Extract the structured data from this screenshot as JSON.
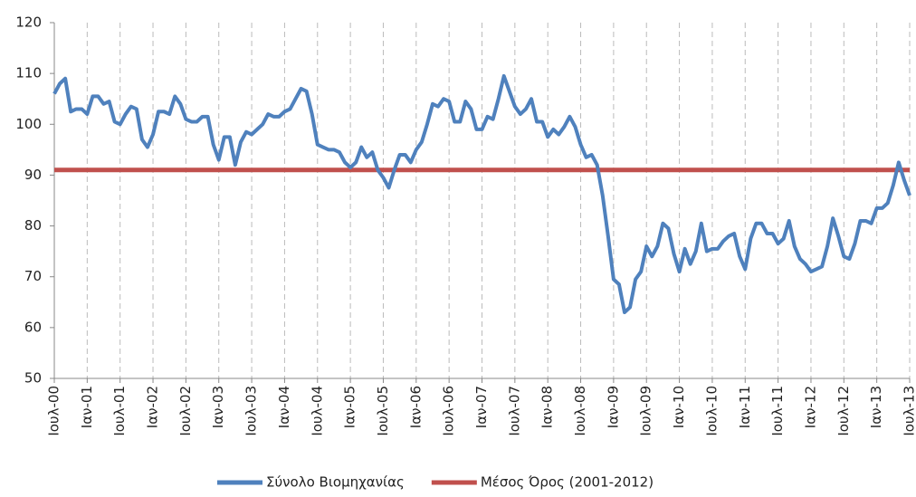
{
  "chart_data": {
    "type": "line",
    "categories": [
      "Ιουλ-00",
      null,
      null,
      null,
      null,
      null,
      "Ιαν-01",
      null,
      null,
      null,
      null,
      null,
      "Ιουλ-01",
      null,
      null,
      null,
      null,
      null,
      "Ιαν-02",
      null,
      null,
      null,
      null,
      null,
      "Ιουλ-02",
      null,
      null,
      null,
      null,
      null,
      "Ιαν-03",
      null,
      null,
      null,
      null,
      null,
      "Ιουλ-03",
      null,
      null,
      null,
      null,
      null,
      "Ιαν-04",
      null,
      null,
      null,
      null,
      null,
      "Ιουλ-04",
      null,
      null,
      null,
      null,
      null,
      "Ιαν-05",
      null,
      null,
      null,
      null,
      null,
      "Ιουλ-05",
      null,
      null,
      null,
      null,
      null,
      "Ιαν-06",
      null,
      null,
      null,
      null,
      null,
      "Ιουλ-06",
      null,
      null,
      null,
      null,
      null,
      "Ιαν-07",
      null,
      null,
      null,
      null,
      null,
      "Ιουλ-07",
      null,
      null,
      null,
      null,
      null,
      "Ιαν-08",
      null,
      null,
      null,
      null,
      null,
      "Ιουλ-08",
      null,
      null,
      null,
      null,
      null,
      "Ιαν-09",
      null,
      null,
      null,
      null,
      null,
      "Ιουλ-09",
      null,
      null,
      null,
      null,
      null,
      "Ιαν-10",
      null,
      null,
      null,
      null,
      null,
      "Ιουλ-10",
      null,
      null,
      null,
      null,
      null,
      "Ιαν-11",
      null,
      null,
      null,
      null,
      null,
      "Ιουλ-11",
      null,
      null,
      null,
      null,
      null,
      "Ιαν-12",
      null,
      null,
      null,
      null,
      null,
      "Ιουλ-12",
      null,
      null,
      null,
      null,
      null,
      "Ιαν-13",
      null,
      null,
      null,
      null,
      null,
      "Ιουλ-13"
    ],
    "series": [
      {
        "name": "Σύνολο Βιομηχανίας",
        "color": "#4f81bd",
        "values": [
          106,
          108,
          109,
          102.5,
          103,
          103,
          102,
          105.5,
          105.5,
          104,
          104.5,
          100.5,
          100,
          102,
          103.5,
          103,
          97,
          95.5,
          98,
          102.5,
          102.5,
          102,
          105.5,
          104,
          101,
          100.5,
          100.5,
          101.5,
          101.5,
          96,
          93,
          97.5,
          97.5,
          92,
          96.5,
          98.5,
          98,
          99,
          100,
          102,
          101.5,
          101.5,
          102.5,
          103,
          105,
          107,
          106.5,
          102,
          96,
          95.5,
          95,
          95,
          94.5,
          92.5,
          91.5,
          92.5,
          95.5,
          93.5,
          94.5,
          91,
          89.5,
          87.5,
          91,
          94,
          94,
          92.5,
          95,
          96.5,
          100,
          104,
          103.5,
          105,
          104.5,
          100.5,
          100.5,
          104.5,
          103,
          99,
          99,
          101.5,
          101,
          105,
          109.5,
          106.5,
          103.5,
          102,
          103,
          105,
          100.5,
          100.5,
          97.5,
          99,
          98,
          99.5,
          101.5,
          99.5,
          96,
          93.5,
          94,
          92,
          86,
          78,
          69.5,
          68.5,
          63,
          64,
          69.5,
          71,
          76,
          74,
          76,
          80.5,
          79.5,
          74.5,
          71,
          75.5,
          72.5,
          75,
          80.5,
          75,
          75.5,
          75.5,
          77,
          78,
          78.5,
          74,
          71.5,
          77.5,
          80.5,
          80.5,
          78.5,
          78.5,
          76.5,
          77.5,
          81,
          76,
          73.5,
          72.5,
          71,
          71.5,
          72,
          76,
          81.5,
          78,
          74,
          73.5,
          76.5,
          81,
          81,
          80.5,
          83.5,
          83.5,
          84.5,
          88,
          92.5,
          89,
          86
        ]
      },
      {
        "name": "Μέσος Όρος (2001-2012)",
        "color": "#c0504d",
        "values": [
          91,
          91,
          91,
          91,
          91,
          91,
          91,
          91,
          91,
          91,
          91,
          91,
          91,
          91,
          91,
          91,
          91,
          91,
          91,
          91,
          91,
          91,
          91,
          91,
          91,
          91,
          91,
          91,
          91,
          91,
          91,
          91,
          91,
          91,
          91,
          91,
          91,
          91,
          91,
          91,
          91,
          91,
          91,
          91,
          91,
          91,
          91,
          91,
          91,
          91,
          91,
          91,
          91,
          91,
          91,
          91,
          91,
          91,
          91,
          91,
          91,
          91,
          91,
          91,
          91,
          91,
          91,
          91,
          91,
          91,
          91,
          91,
          91,
          91,
          91,
          91,
          91,
          91,
          91,
          91,
          91,
          91,
          91,
          91,
          91,
          91,
          91,
          91,
          91,
          91,
          91,
          91,
          91,
          91,
          91,
          91,
          91,
          91,
          91,
          91,
          91,
          91,
          91,
          91,
          91,
          91,
          91,
          91,
          91,
          91,
          91,
          91,
          91,
          91,
          91,
          91,
          91,
          91,
          91,
          91,
          91,
          91,
          91,
          91,
          91,
          91,
          91,
          91,
          91,
          91,
          91,
          91,
          91,
          91,
          91,
          91,
          91,
          91,
          91,
          91,
          91,
          91,
          91,
          91,
          91,
          91,
          91,
          91,
          91,
          91,
          91,
          91,
          91,
          91,
          91,
          91,
          91
        ]
      }
    ],
    "ylim": [
      50,
      120
    ],
    "yticks": [
      50,
      60,
      70,
      80,
      90,
      100,
      110,
      120
    ],
    "xgrid": true,
    "legend": "bottom"
  }
}
